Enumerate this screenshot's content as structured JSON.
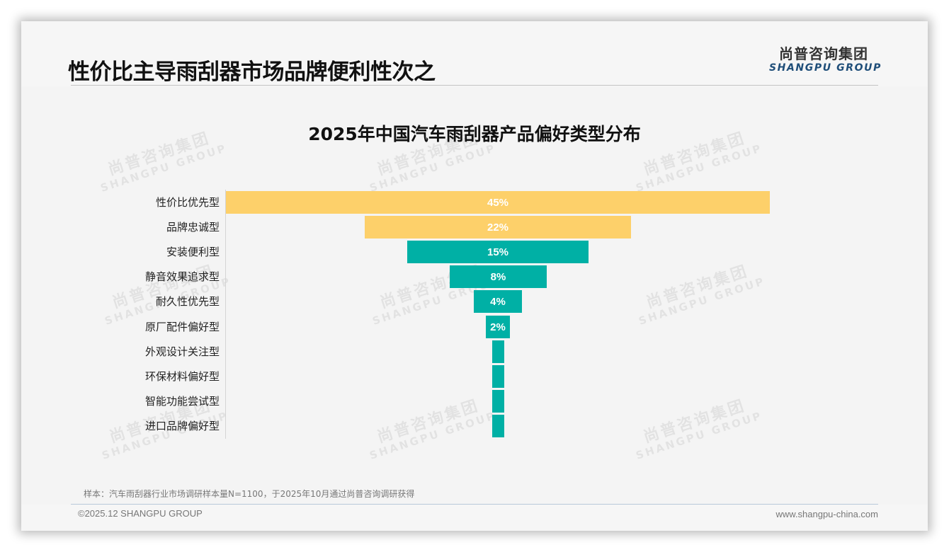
{
  "header": {
    "title": "性价比主导雨刮器市场品牌便利性次之",
    "logo_cn": "尚普咨询集团",
    "logo_en": "SHANGPU GROUP"
  },
  "watermark": {
    "cn": "尚普咨询集团",
    "en": "SHANGPU GROUP"
  },
  "chart_data": {
    "type": "bar",
    "subtype": "funnel (centered horizontal bars)",
    "title": "2025年中国汽车雨刮器产品偏好类型分布",
    "xlabel": "",
    "ylabel": "",
    "grid": false,
    "legend": null,
    "categories": [
      "性价比优先型",
      "品牌忠诚型",
      "安装便利型",
      "静音效果追求型",
      "耐久性优先型",
      "原厂配件偏好型",
      "外观设计关注型",
      "环保材料偏好型",
      "智能功能尝试型",
      "进口品牌偏好型"
    ],
    "values": [
      45,
      22,
      15,
      8,
      4,
      2,
      1,
      1,
      1,
      1
    ],
    "value_labels": [
      "45%",
      "22%",
      "15%",
      "8%",
      "4%",
      "2%",
      "",
      "",
      "",
      ""
    ],
    "colors": [
      "#fdd06a",
      "#fdd06a",
      "#00b0a5",
      "#00b0a5",
      "#00b0a5",
      "#00b0a5",
      "#00b0a5",
      "#00b0a5",
      "#00b0a5",
      "#00b0a5"
    ],
    "unit": "%"
  },
  "footer": {
    "note": "样本：汽车雨刮器行业市场调研样本量N=1100，于2025年10月通过尚普咨询调研获得",
    "copyright": "©2025.12 SHANGPU GROUP",
    "website": "www.shangpu-china.com"
  }
}
